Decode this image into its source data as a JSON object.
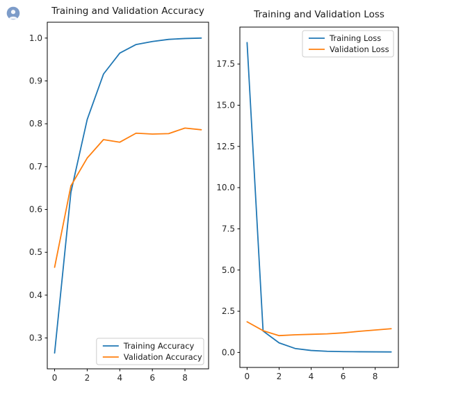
{
  "avatar": {
    "icon": "user-bust-icon",
    "bg_color": "#7d9cc9"
  },
  "colors": {
    "line_blue": "#1f77b4",
    "line_orange": "#ff7f0e",
    "axis": "#000000",
    "tick_text": "#262626",
    "legend_border": "#cccccc",
    "background": "#ffffff"
  },
  "chart_data": [
    {
      "type": "line",
      "title": "Training and Validation Accuracy",
      "xlabel": "",
      "ylabel": "",
      "x": [
        0,
        1,
        2,
        3,
        4,
        5,
        6,
        7,
        8,
        9
      ],
      "series": [
        {
          "name": "Training Accuracy",
          "color": "#1f77b4",
          "values": [
            0.265,
            0.64,
            0.81,
            0.916,
            0.965,
            0.985,
            0.992,
            0.997,
            0.999,
            1.0
          ]
        },
        {
          "name": "Validation Accuracy",
          "color": "#ff7f0e",
          "values": [
            0.465,
            0.655,
            0.72,
            0.763,
            0.757,
            0.778,
            0.776,
            0.777,
            0.79,
            0.786
          ]
        }
      ],
      "xlim": [
        -0.45,
        9.45
      ],
      "ylim": [
        0.228,
        1.037
      ],
      "xticks": [
        0,
        2,
        4,
        6,
        8
      ],
      "yticks": [
        0.3,
        0.4,
        0.5,
        0.6,
        0.7,
        0.8,
        0.9,
        1.0
      ],
      "ytick_labels": [
        "0.3",
        "0.4",
        "0.5",
        "0.6",
        "0.7",
        "0.8",
        "0.9",
        "1.0"
      ],
      "grid": false,
      "legend": {
        "position": "lower right",
        "labels": [
          "Training Accuracy",
          "Validation Accuracy"
        ]
      }
    },
    {
      "type": "line",
      "title": "Training and Validation Loss",
      "xlabel": "",
      "ylabel": "",
      "x": [
        0,
        1,
        2,
        3,
        4,
        5,
        6,
        7,
        8,
        9
      ],
      "series": [
        {
          "name": "Training Loss",
          "color": "#1f77b4",
          "values": [
            18.8,
            1.3,
            0.58,
            0.24,
            0.12,
            0.07,
            0.05,
            0.04,
            0.035,
            0.03
          ]
        },
        {
          "name": "Validation Loss",
          "color": "#ff7f0e",
          "values": [
            1.86,
            1.32,
            1.02,
            1.07,
            1.1,
            1.13,
            1.19,
            1.28,
            1.36,
            1.44
          ]
        }
      ],
      "xlim": [
        -0.45,
        9.45
      ],
      "ylim": [
        -0.91,
        19.74
      ],
      "xticks": [
        0,
        2,
        4,
        6,
        8
      ],
      "yticks": [
        0.0,
        2.5,
        5.0,
        7.5,
        10.0,
        12.5,
        15.0,
        17.5
      ],
      "ytick_labels": [
        "0.0",
        "2.5",
        "5.0",
        "7.5",
        "10.0",
        "12.5",
        "15.0",
        "17.5"
      ],
      "grid": false,
      "legend": {
        "position": "upper right",
        "labels": [
          "Training Loss",
          "Validation Loss"
        ]
      }
    }
  ]
}
